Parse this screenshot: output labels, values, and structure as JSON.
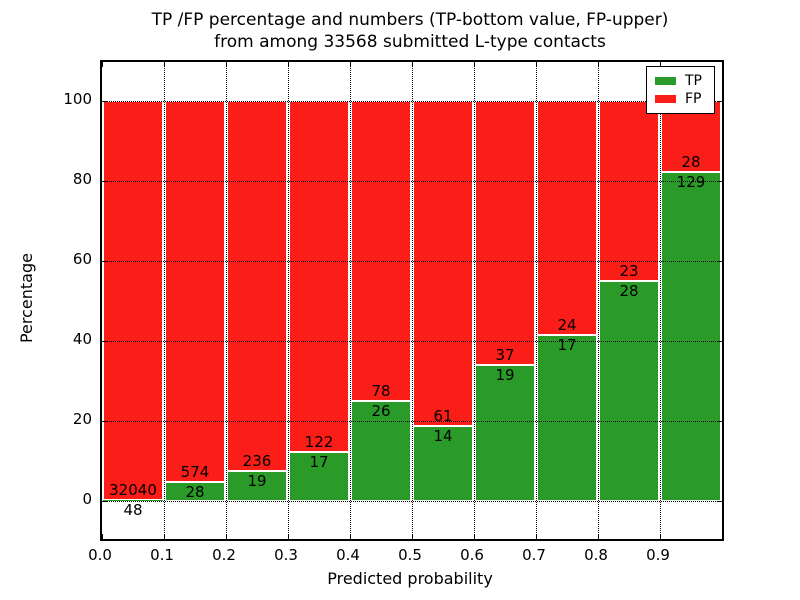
{
  "chart_data": {
    "type": "bar",
    "stacked": true,
    "title": "TP /FP percentage and numbers (TP-bottom value, FP-upper)",
    "subtitle": "from among 33568 submitted L-type contacts",
    "xlabel": "Predicted probability",
    "ylabel": "Percentage",
    "xlim": [
      0.0,
      1.0
    ],
    "ylim": [
      -9.5,
      109.75
    ],
    "x_tick_labels": [
      "0.0",
      "0.1",
      "0.2",
      "0.3",
      "0.4",
      "0.5",
      "0.6",
      "0.7",
      "0.8",
      "0.9"
    ],
    "y_ticks": [
      0,
      20,
      40,
      60,
      80,
      100
    ],
    "grid": "dotted",
    "total_submitted": 33568,
    "categories": [
      "0.0-0.1",
      "0.1-0.2",
      "0.2-0.3",
      "0.3-0.4",
      "0.4-0.5",
      "0.5-0.6",
      "0.6-0.7",
      "0.7-0.8",
      "0.8-0.9",
      "0.9-1.0"
    ],
    "series": [
      {
        "name": "TP",
        "color": "#2a9b28",
        "counts": [
          48,
          28,
          19,
          17,
          26,
          14,
          19,
          17,
          28,
          129
        ]
      },
      {
        "name": "FP",
        "color": "#fb1d17",
        "counts": [
          32040,
          574,
          236,
          122,
          78,
          61,
          37,
          24,
          23,
          28
        ]
      }
    ],
    "legend": {
      "position": "upper right",
      "entries": [
        {
          "label": "TP",
          "color": "#2a9b28"
        },
        {
          "label": "FP",
          "color": "#fb1d17"
        }
      ]
    }
  }
}
